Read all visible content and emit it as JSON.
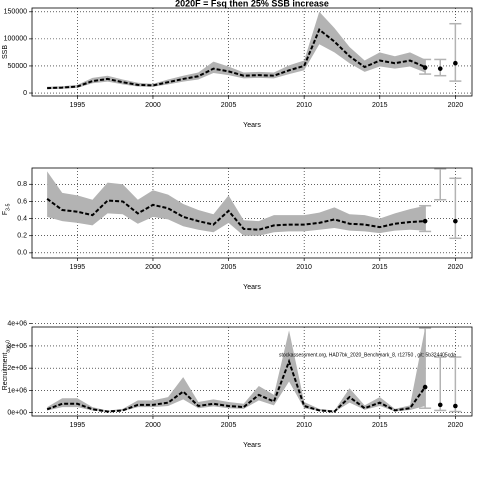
{
  "chart_data": [
    {
      "type": "line",
      "title": "2020F = Fsq then 25% SSB increase",
      "xlabel": "Years",
      "ylabel": "SSB",
      "x": [
        1993,
        1994,
        1995,
        1996,
        1997,
        1998,
        1999,
        2000,
        2001,
        2002,
        2003,
        2004,
        2005,
        2006,
        2007,
        2008,
        2009,
        2010,
        2011,
        2012,
        2013,
        2014,
        2015,
        2016,
        2017,
        2018
      ],
      "values": [
        9000,
        10000,
        12000,
        22000,
        26000,
        20000,
        15000,
        14000,
        20000,
        26000,
        31000,
        45000,
        40000,
        32000,
        33000,
        32000,
        42000,
        50000,
        117000,
        95000,
        68000,
        48000,
        60000,
        55000,
        60000,
        48000
      ],
      "lower": [
        7000,
        8000,
        9500,
        18000,
        21000,
        16000,
        12000,
        11500,
        16000,
        21000,
        25000,
        37000,
        33000,
        27000,
        28000,
        27000,
        35000,
        42000,
        90000,
        75000,
        55000,
        39000,
        49000,
        45000,
        49000,
        38000
      ],
      "upper": [
        11500,
        12500,
        15000,
        28000,
        32000,
        25000,
        19000,
        17000,
        25000,
        32000,
        38000,
        58000,
        49000,
        38000,
        39000,
        38000,
        51000,
        60000,
        150000,
        120000,
        85000,
        60000,
        75000,
        68000,
        75000,
        62000
      ],
      "proj_x": [
        2018,
        2019,
        2020
      ],
      "proj_values": [
        47000,
        45000,
        55000
      ],
      "proj_lower": [
        35000,
        32000,
        22000
      ],
      "proj_upper": [
        62000,
        62000,
        128000
      ],
      "xlim": [
        1992,
        2021.1
      ],
      "ylim": [
        -5500,
        157000
      ],
      "xticks": [
        1995,
        2000,
        2005,
        2010,
        2015,
        2020
      ],
      "yticks": [
        0,
        50000,
        100000,
        150000
      ],
      "grid": true,
      "color": "#000000",
      "band_color": "#b3b3b3"
    },
    {
      "type": "line",
      "xlabel": "Years",
      "ylabel": "F",
      "ylabel_sub": "3-5",
      "x": [
        1993,
        1994,
        1995,
        1996,
        1997,
        1998,
        1999,
        2000,
        2001,
        2002,
        2003,
        2004,
        2005,
        2006,
        2007,
        2008,
        2009,
        2010,
        2011,
        2012,
        2013,
        2014,
        2015,
        2016,
        2017,
        2018
      ],
      "values": [
        0.63,
        0.5,
        0.48,
        0.44,
        0.61,
        0.6,
        0.46,
        0.56,
        0.52,
        0.42,
        0.37,
        0.33,
        0.49,
        0.28,
        0.27,
        0.32,
        0.33,
        0.33,
        0.35,
        0.39,
        0.34,
        0.33,
        0.3,
        0.34,
        0.36,
        0.37
      ],
      "lower": [
        0.42,
        0.37,
        0.35,
        0.32,
        0.46,
        0.45,
        0.34,
        0.42,
        0.39,
        0.31,
        0.27,
        0.24,
        0.35,
        0.2,
        0.2,
        0.24,
        0.25,
        0.25,
        0.27,
        0.29,
        0.26,
        0.25,
        0.23,
        0.26,
        0.27,
        0.26
      ],
      "upper": [
        0.95,
        0.7,
        0.67,
        0.62,
        0.82,
        0.8,
        0.62,
        0.73,
        0.68,
        0.57,
        0.5,
        0.45,
        0.67,
        0.38,
        0.37,
        0.44,
        0.44,
        0.44,
        0.47,
        0.53,
        0.45,
        0.44,
        0.4,
        0.46,
        0.51,
        0.55
      ],
      "proj_x": [
        2018,
        2019,
        2020
      ],
      "proj_values": [
        0.37,
        null,
        0.37
      ],
      "proj_lower": [
        0.25,
        0.62,
        0.17
      ],
      "proj_upper": [
        0.55,
        0.98,
        0.87
      ],
      "xlim": [
        1992,
        2021.1
      ],
      "ylim": [
        -0.06,
        0.99
      ],
      "xticks": [
        1995,
        2000,
        2005,
        2010,
        2015,
        2020
      ],
      "yticks": [
        {
          "value": 0,
          "label": "0.0"
        },
        0.2,
        0.4,
        0.6,
        0.8
      ],
      "grid": true,
      "color": "#000000",
      "band_color": "#b3b3b3"
    },
    {
      "type": "line",
      "xlabel": "Years",
      "ylabel": "Recruitment",
      "ylabel_sub": "age 0",
      "annotation": "stockassessment.org, HAD7bk_2020_Benchmark_8, r12750 , git: 5b324405cda",
      "x": [
        1993,
        1994,
        1995,
        1996,
        1997,
        1998,
        1999,
        2000,
        2001,
        2002,
        2003,
        2004,
        2005,
        2006,
        2007,
        2008,
        2009,
        2010,
        2011,
        2012,
        2013,
        2014,
        2015,
        2016,
        2017,
        2018
      ],
      "values": [
        150000,
        400000,
        400000,
        150000,
        50000,
        100000,
        350000,
        350000,
        450000,
        950000,
        300000,
        400000,
        300000,
        250000,
        800000,
        500000,
        2300000,
        300000,
        100000,
        50000,
        700000,
        200000,
        450000,
        100000,
        200000,
        1150000
      ],
      "lower": [
        100000,
        250000,
        250000,
        100000,
        30000,
        70000,
        250000,
        250000,
        300000,
        600000,
        200000,
        280000,
        200000,
        170000,
        550000,
        330000,
        1400000,
        200000,
        70000,
        30000,
        450000,
        130000,
        300000,
        60000,
        120000,
        300000
      ],
      "upper": [
        250000,
        650000,
        650000,
        250000,
        90000,
        170000,
        550000,
        550000,
        700000,
        1600000,
        480000,
        600000,
        480000,
        400000,
        1200000,
        800000,
        3700000,
        480000,
        170000,
        90000,
        1100000,
        330000,
        700000,
        170000,
        330000,
        3800000
      ],
      "proj_x": [
        2018,
        2019,
        2020
      ],
      "proj_values": [
        1150000,
        350000,
        300000
      ],
      "proj_lower": [
        200000,
        100000,
        50000
      ],
      "proj_upper": [
        3800000,
        2500000,
        2500000
      ],
      "xlim": [
        1992,
        2021.1
      ],
      "ylim": [
        -150000,
        3850000
      ],
      "xticks": [
        1995,
        2000,
        2005,
        2010,
        2015,
        2020
      ],
      "yticks": [
        {
          "value": 0,
          "label": "0e+00"
        },
        {
          "value": 1000000,
          "label": "1e+06"
        },
        {
          "value": 2000000,
          "label": "2e+06"
        },
        {
          "value": 3000000,
          "label": "3e+06"
        },
        {
          "value": 4000000,
          "label": "4e+06"
        }
      ],
      "grid": true,
      "color": "#000000",
      "band_color": "#b3b3b3"
    }
  ]
}
